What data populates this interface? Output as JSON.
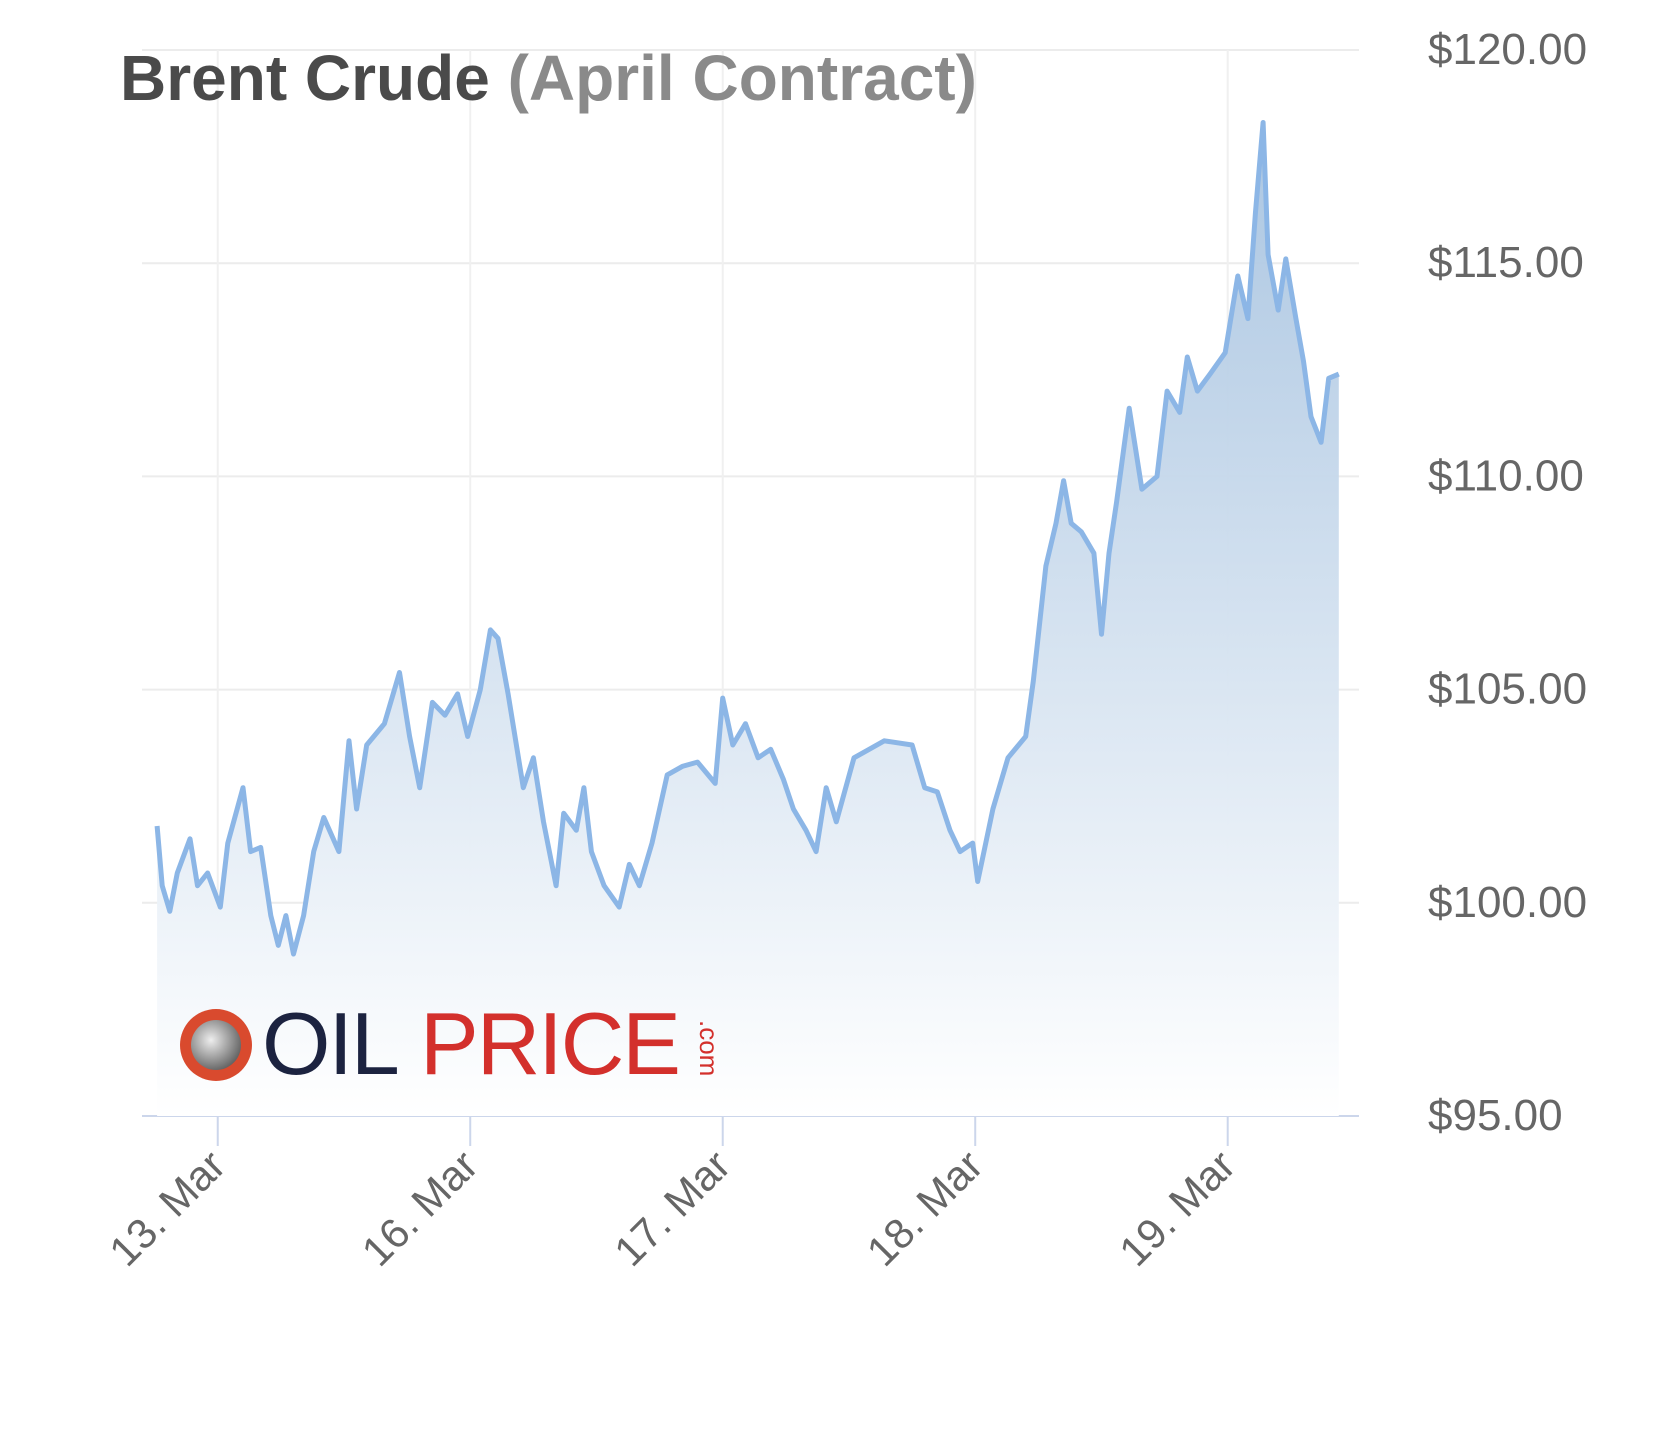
{
  "chart_data": {
    "type": "area",
    "title": "Brent Crude",
    "subtitle": "(April Contract)",
    "watermark": [
      "OIL",
      "PRICE",
      ".com"
    ],
    "x": [
      -0.24,
      -0.22,
      -0.19,
      -0.16,
      -0.11,
      -0.08,
      -0.04,
      0.01,
      0.04,
      0.1,
      0.13,
      0.17,
      0.21,
      0.24,
      0.27,
      0.3,
      0.34,
      0.38,
      0.42,
      0.48,
      0.52,
      0.55,
      0.59,
      0.66,
      0.72,
      0.76,
      0.8,
      0.85,
      0.9,
      0.95,
      0.99,
      1.04,
      1.08,
      1.11,
      1.15,
      1.21,
      1.25,
      1.29,
      1.34,
      1.37,
      1.42,
      1.45,
      1.48,
      1.53,
      1.59,
      1.63,
      1.67,
      1.72,
      1.78,
      1.84,
      1.9,
      1.97,
      2.0,
      2.04,
      2.09,
      2.14,
      2.19,
      2.24,
      2.28,
      2.33,
      2.37,
      2.41,
      2.45,
      2.52,
      2.58,
      2.64,
      2.75,
      2.8,
      2.85,
      2.9,
      2.94,
      2.99,
      3.01,
      3.07,
      3.13,
      3.2,
      3.23,
      3.28,
      3.32,
      3.35,
      3.38,
      3.42,
      3.47,
      3.5,
      3.53,
      3.56,
      3.61,
      3.66,
      3.72,
      3.76,
      3.81,
      3.84,
      3.88,
      3.93,
      3.99,
      4.04,
      4.08,
      4.11,
      4.14,
      4.16,
      4.2,
      4.23,
      4.27,
      4.3,
      4.33,
      4.37,
      4.4,
      4.44
    ],
    "series": [
      {
        "name": "Brent Crude",
        "color": "#8cb6e6",
        "values": [
          101.8,
          100.4,
          99.8,
          100.7,
          101.5,
          100.4,
          100.7,
          99.9,
          101.4,
          102.7,
          101.2,
          101.3,
          99.7,
          99.0,
          99.7,
          98.8,
          99.7,
          101.2,
          102.0,
          101.2,
          103.8,
          102.2,
          103.7,
          104.2,
          105.4,
          103.9,
          102.7,
          104.7,
          104.4,
          104.9,
          103.9,
          105.0,
          106.4,
          106.2,
          104.9,
          102.7,
          103.4,
          101.9,
          100.4,
          102.1,
          101.7,
          102.7,
          101.2,
          100.4,
          99.9,
          100.9,
          100.4,
          101.4,
          103.0,
          103.2,
          103.3,
          102.8,
          104.8,
          103.7,
          104.2,
          103.4,
          103.6,
          102.9,
          102.2,
          101.7,
          101.2,
          102.7,
          101.9,
          103.4,
          103.6,
          103.8,
          103.7,
          102.7,
          102.6,
          101.7,
          101.2,
          101.4,
          100.5,
          102.2,
          103.4,
          103.9,
          105.2,
          107.9,
          108.9,
          109.9,
          108.9,
          108.7,
          108.2,
          106.3,
          108.2,
          109.4,
          111.6,
          109.7,
          110.0,
          112.0,
          111.5,
          112.8,
          112.0,
          112.4,
          112.9,
          114.7,
          113.7,
          116.2,
          118.3,
          115.2,
          113.9,
          115.1,
          113.7,
          112.7,
          111.4,
          110.8,
          112.3,
          112.4
        ]
      }
    ],
    "xlim": [
      -0.3,
      4.52
    ],
    "xticks": [
      {
        "value": 0,
        "label": "13. Mar"
      },
      {
        "value": 1,
        "label": "16. Mar"
      },
      {
        "value": 2,
        "label": "17. Mar"
      },
      {
        "value": 3,
        "label": "18. Mar"
      },
      {
        "value": 4,
        "label": "19. Mar"
      }
    ],
    "ylim": [
      95,
      120
    ],
    "yticks": [
      {
        "value": 95,
        "label": "$95.00"
      },
      {
        "value": 100,
        "label": "$100.00"
      },
      {
        "value": 105,
        "label": "$105.00"
      },
      {
        "value": 110,
        "label": "$110.00"
      },
      {
        "value": 115,
        "label": "$115.00"
      },
      {
        "value": 120,
        "label": "$120.00"
      }
    ],
    "grid": true
  }
}
